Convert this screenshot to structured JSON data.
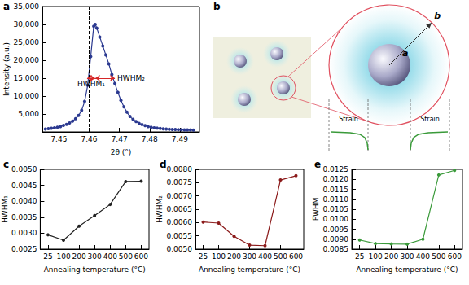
{
  "chart_data": [
    {
      "type": "line",
      "title": "a",
      "x": [
        7.4455,
        7.4465,
        7.4475,
        7.4485,
        7.4495,
        7.4505,
        7.4515,
        7.4525,
        7.4535,
        7.4545,
        7.4555,
        7.4565,
        7.4575,
        7.4585,
        7.4595,
        7.4605,
        7.4615,
        7.462,
        7.4625,
        7.4635,
        7.4645,
        7.4655,
        7.4665,
        7.4675,
        7.4685,
        7.4695,
        7.4705,
        7.4715,
        7.4725,
        7.4735,
        7.4745,
        7.4755,
        7.4765,
        7.4775,
        7.4785,
        7.4795,
        7.4805,
        7.4815,
        7.4825,
        7.4835,
        7.4845,
        7.4855,
        7.4865,
        7.4875,
        7.4885,
        7.4895,
        7.4905,
        7.4915,
        7.4925,
        7.4935,
        7.4945
      ],
      "values": [
        800,
        900,
        1000,
        1150,
        1300,
        1500,
        1800,
        2100,
        2500,
        3000,
        3700,
        4600,
        6000,
        8500,
        13000,
        21000,
        29500,
        30000,
        29000,
        26500,
        24000,
        21500,
        19000,
        16000,
        13500,
        11000,
        8800,
        7000,
        5500,
        4300,
        3500,
        2900,
        2400,
        2050,
        1750,
        1500,
        1300,
        1150,
        1050,
        950,
        870,
        800,
        750,
        700,
        660,
        630,
        600,
        580,
        560,
        540,
        520
      ],
      "color": "#2b3990",
      "marker": "circle",
      "xlabel": "2θ (°)",
      "ylabel": "Intensity (a.u.)",
      "xlim": [
        7.4445,
        7.4965
      ],
      "xticks": [
        7.45,
        7.46,
        7.47,
        7.48,
        7.49
      ],
      "ylim": [
        0,
        35000
      ],
      "yticks": [
        {
          "value": 5000,
          "label": "5,000"
        },
        {
          "value": 10000,
          "label": "10,000"
        },
        {
          "value": 15000,
          "label": "15,000"
        },
        {
          "value": 20000,
          "label": "20,000"
        },
        {
          "value": 25000,
          "label": "25,000"
        },
        {
          "value": 30000,
          "label": "30,000"
        },
        {
          "value": 35000,
          "label": "35,000"
        }
      ],
      "vline": 7.462,
      "annotations": [
        {
          "text": "HWHM₁",
          "x": [
            7.4593,
            7.462
          ],
          "y": 15000
        },
        {
          "text": "HWHM₂",
          "x": [
            7.462,
            7.4685
          ],
          "y": 15000
        }
      ],
      "grid": false
    },
    {
      "type": "diagram",
      "title": "b",
      "labels": [
        "b",
        "a"
      ],
      "annotations": [
        "Strain",
        "Strain"
      ]
    },
    {
      "type": "line",
      "title": "c",
      "categories": [
        "25",
        "100",
        "200",
        "300",
        "400",
        "500",
        "600"
      ],
      "values": [
        0.00295,
        0.00278,
        0.00322,
        0.00355,
        0.0039,
        0.00462,
        0.00463
      ],
      "color": "#222222",
      "marker": "circle",
      "xlabel": "Annealing temperature (°C)",
      "ylabel": "HWHM₁",
      "ylim": [
        0.0025,
        0.005
      ],
      "yticks": [
        {
          "value": 0.0025,
          "label": "0.0025"
        },
        {
          "value": 0.003,
          "label": "0.0030"
        },
        {
          "value": 0.0035,
          "label": "0.0035"
        },
        {
          "value": 0.004,
          "label": "0.0040"
        },
        {
          "value": 0.0045,
          "label": "0.0045"
        },
        {
          "value": 0.005,
          "label": "0.0050"
        }
      ],
      "grid": false
    },
    {
      "type": "line",
      "title": "d",
      "categories": [
        "25",
        "100",
        "200",
        "300",
        "400",
        "500",
        "600"
      ],
      "values": [
        0.00602,
        0.00598,
        0.00548,
        0.00515,
        0.00513,
        0.0076,
        0.00776
      ],
      "color": "#8b1a1a",
      "marker": "circle",
      "xlabel": "Annealing temperature (°C)",
      "ylabel": "HWHM₂",
      "ylim": [
        0.005,
        0.008
      ],
      "yticks": [
        {
          "value": 0.005,
          "label": "0.0050"
        },
        {
          "value": 0.0055,
          "label": "0.0055"
        },
        {
          "value": 0.006,
          "label": "0.0060"
        },
        {
          "value": 0.0065,
          "label": "0.0065"
        },
        {
          "value": 0.007,
          "label": "0.0070"
        },
        {
          "value": 0.0075,
          "label": "0.0075"
        },
        {
          "value": 0.008,
          "label": "0.0080"
        }
      ],
      "grid": false
    },
    {
      "type": "line",
      "title": "e",
      "categories": [
        "25",
        "100",
        "200",
        "300",
        "400",
        "500",
        "600"
      ],
      "values": [
        0.00896,
        0.00878,
        0.00876,
        0.00875,
        0.009,
        0.01222,
        0.01245
      ],
      "color": "#3a9a3a",
      "marker": "circle",
      "xlabel": "Annealing temperature (°C)",
      "ylabel": "FWHM",
      "ylim": [
        0.0085,
        0.0125
      ],
      "yticks": [
        {
          "value": 0.0085,
          "label": "0.0085"
        },
        {
          "value": 0.009,
          "label": "0.0090"
        },
        {
          "value": 0.0095,
          "label": "0.0095"
        },
        {
          "value": 0.01,
          "label": "0.0100"
        },
        {
          "value": 0.0105,
          "label": "0.0105"
        },
        {
          "value": 0.011,
          "label": "0.0110"
        },
        {
          "value": 0.0115,
          "label": "0.0115"
        },
        {
          "value": 0.012,
          "label": "0.0120"
        },
        {
          "value": 0.0125,
          "label": "0.0125"
        }
      ],
      "grid": false
    }
  ]
}
